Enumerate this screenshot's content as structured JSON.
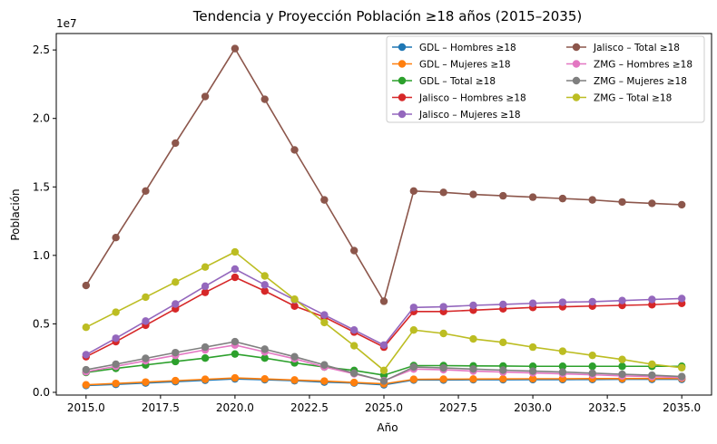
{
  "chart_data": {
    "type": "line",
    "title": "Tendencia y Proyección Población ≥18 años (2015–2035)",
    "xlabel": "Año",
    "ylabel": "Población",
    "y_offset_label": "1e7",
    "xlim": [
      2014,
      2036
    ],
    "ylim": [
      -0.02,
      2.62
    ],
    "y_unit_multiplier": 10000000,
    "x_ticks": [
      2015.0,
      2017.5,
      2020.0,
      2022.5,
      2025.0,
      2027.5,
      2030.0,
      2032.5,
      2035.0
    ],
    "x_tick_labels": [
      "2015.0",
      "2017.5",
      "2020.0",
      "2022.5",
      "2025.0",
      "2027.5",
      "2030.0",
      "2032.5",
      "2035.0"
    ],
    "y_ticks": [
      0.0,
      0.5,
      1.0,
      1.5,
      2.0,
      2.5
    ],
    "y_tick_labels": [
      "0.0",
      "0.5",
      "1.0",
      "1.5",
      "2.0",
      "2.5"
    ],
    "grid": false,
    "legend_position": "top-right",
    "x": [
      2015,
      2016,
      2017,
      2018,
      2019,
      2020,
      2021,
      2022,
      2023,
      2024,
      2025,
      2026,
      2027,
      2028,
      2029,
      2030,
      2031,
      2032,
      2033,
      2034,
      2035
    ],
    "series": [
      {
        "name": "GDL – Hombres ≥18",
        "color": "#1f77b4",
        "values": [
          0.05,
          0.058,
          0.068,
          0.078,
          0.088,
          0.098,
          0.092,
          0.085,
          0.075,
          0.068,
          0.055,
          0.09,
          0.09,
          0.092,
          0.092,
          0.093,
          0.093,
          0.094,
          0.095,
          0.095,
          0.095
        ]
      },
      {
        "name": "GDL – Mujeres ≥18",
        "color": "#ff7f0e",
        "values": [
          0.055,
          0.065,
          0.075,
          0.085,
          0.095,
          0.105,
          0.098,
          0.09,
          0.082,
          0.072,
          0.062,
          0.095,
          0.096,
          0.097,
          0.098,
          0.099,
          0.099,
          0.1,
          0.1,
          0.101,
          0.101
        ]
      },
      {
        "name": "GDL – Total ≥18",
        "color": "#2ca02c",
        "values": [
          0.145,
          0.175,
          0.2,
          0.225,
          0.25,
          0.28,
          0.25,
          0.215,
          0.185,
          0.16,
          0.125,
          0.195,
          0.195,
          0.193,
          0.192,
          0.19,
          0.19,
          0.19,
          0.19,
          0.19,
          0.19
        ]
      },
      {
        "name": "Jalisco – Hombres ≥18",
        "color": "#d62728",
        "values": [
          0.26,
          0.37,
          0.49,
          0.61,
          0.73,
          0.84,
          0.74,
          0.63,
          0.55,
          0.44,
          0.33,
          0.59,
          0.59,
          0.6,
          0.61,
          0.62,
          0.625,
          0.63,
          0.635,
          0.64,
          0.65
        ]
      },
      {
        "name": "Jalisco – Mujeres ≥18",
        "color": "#9467bd",
        "values": [
          0.275,
          0.395,
          0.52,
          0.645,
          0.775,
          0.9,
          0.785,
          0.675,
          0.565,
          0.455,
          0.345,
          0.62,
          0.625,
          0.635,
          0.642,
          0.65,
          0.658,
          0.662,
          0.67,
          0.678,
          0.685
        ]
      },
      {
        "name": "Jalisco – Total ≥18",
        "color": "#8c564b",
        "values": [
          0.78,
          1.13,
          1.47,
          1.82,
          2.16,
          2.51,
          2.14,
          1.77,
          1.405,
          1.035,
          0.665,
          1.47,
          1.46,
          1.445,
          1.435,
          1.425,
          1.415,
          1.405,
          1.39,
          1.38,
          1.37
        ]
      },
      {
        "name": "ZMG – Hombres ≥18",
        "color": "#e377c2",
        "values": [
          0.15,
          0.19,
          0.23,
          0.27,
          0.31,
          0.345,
          0.295,
          0.245,
          0.185,
          0.135,
          0.085,
          0.17,
          0.165,
          0.155,
          0.148,
          0.142,
          0.135,
          0.128,
          0.12,
          0.115,
          0.108
        ]
      },
      {
        "name": "ZMG – Mujeres ≥18",
        "color": "#7f7f7f",
        "values": [
          0.165,
          0.205,
          0.248,
          0.29,
          0.33,
          0.37,
          0.315,
          0.26,
          0.2,
          0.14,
          0.082,
          0.185,
          0.178,
          0.17,
          0.162,
          0.155,
          0.148,
          0.14,
          0.132,
          0.125,
          0.115
        ]
      },
      {
        "name": "ZMG – Total ≥18",
        "color": "#bcbd22",
        "values": [
          0.475,
          0.585,
          0.695,
          0.805,
          0.915,
          1.025,
          0.85,
          0.68,
          0.51,
          0.34,
          0.16,
          0.455,
          0.43,
          0.39,
          0.365,
          0.33,
          0.3,
          0.27,
          0.24,
          0.205,
          0.18
        ]
      }
    ]
  }
}
